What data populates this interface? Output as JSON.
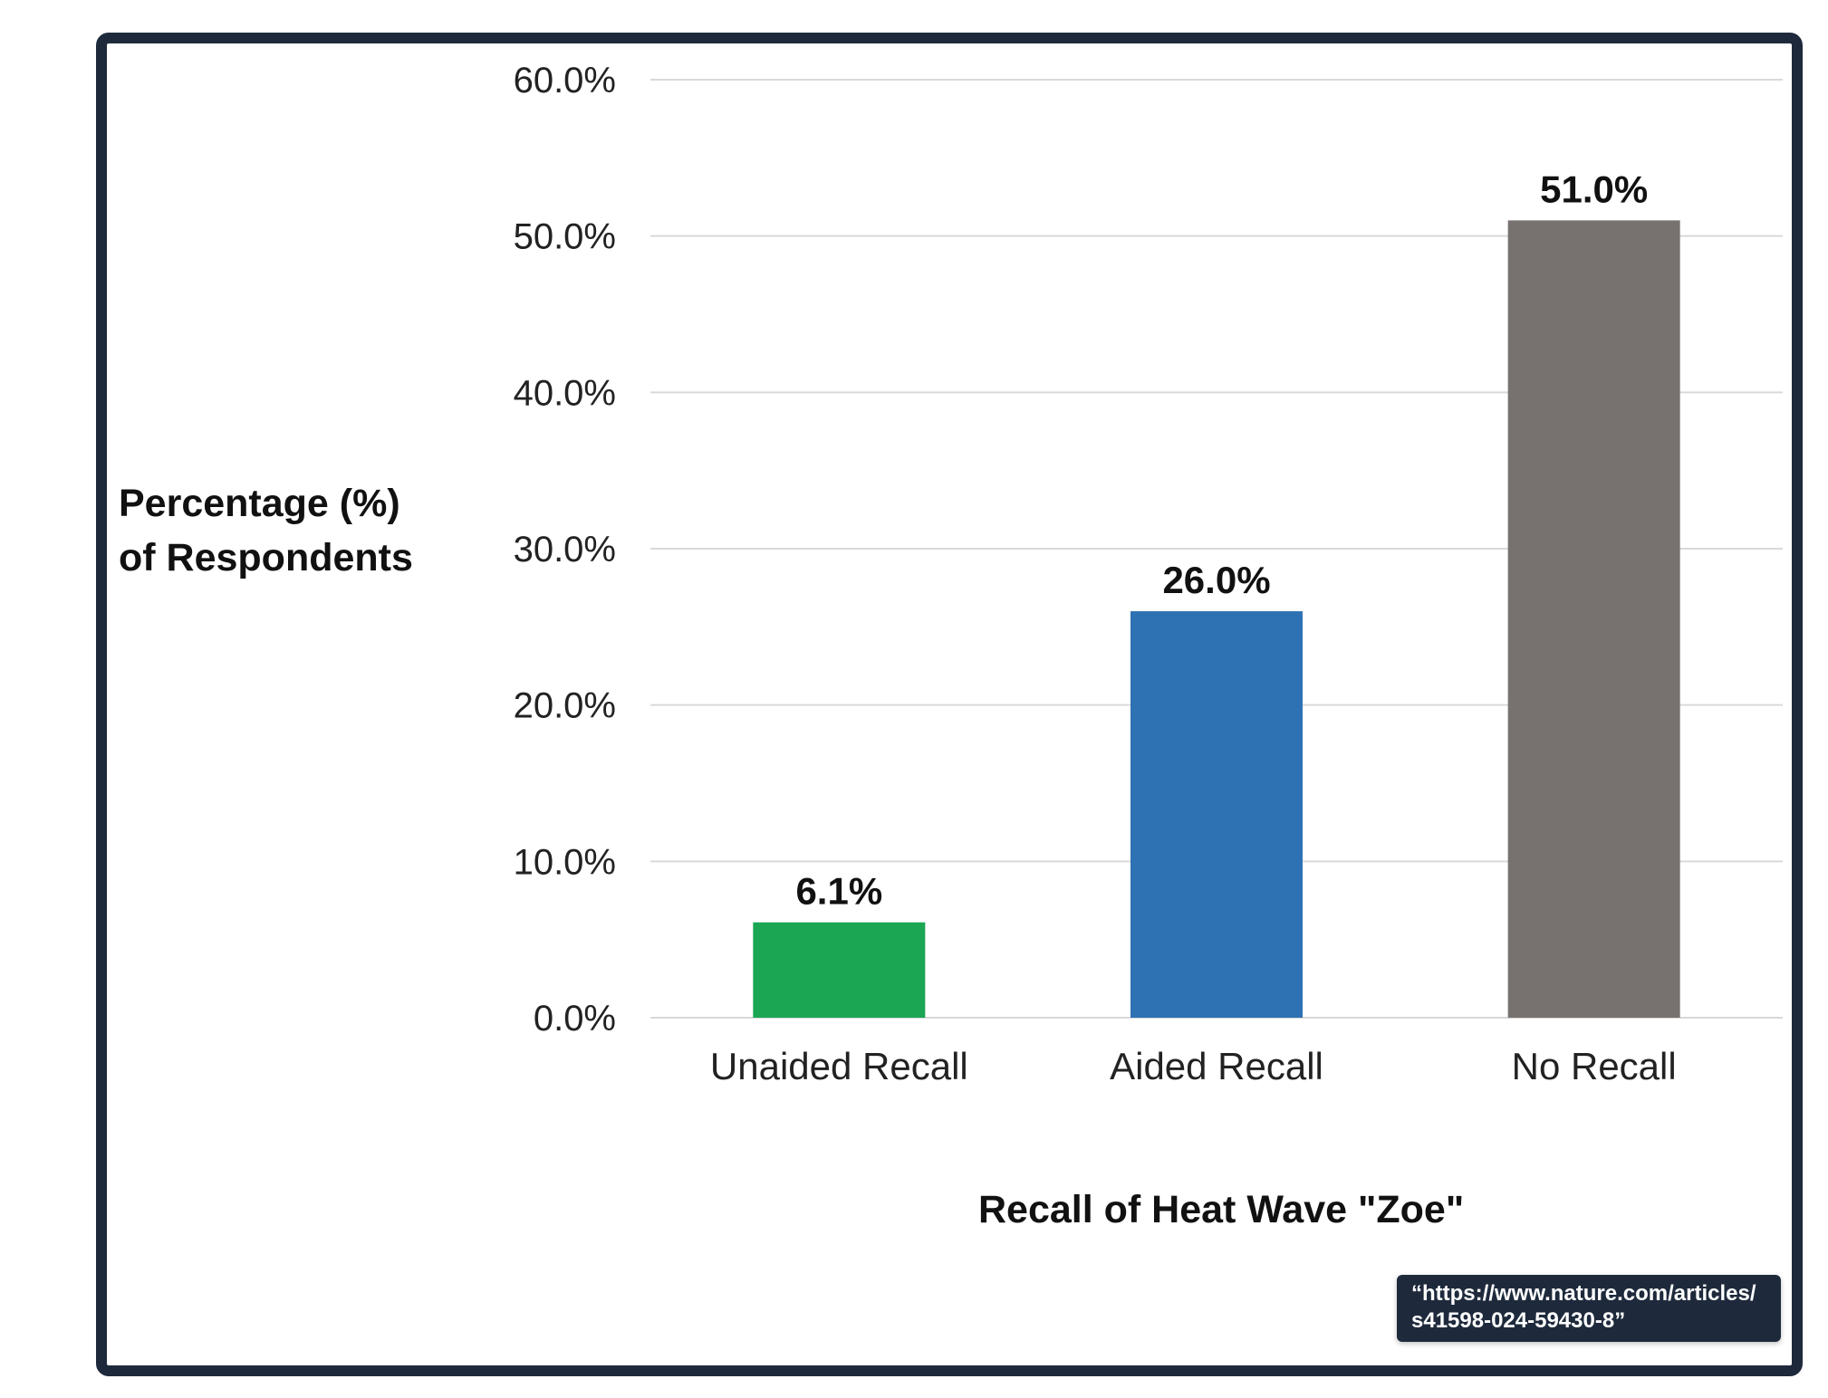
{
  "chart_data": {
    "type": "bar",
    "categories": [
      "Unaided Recall",
      "Aided Recall",
      "No Recall"
    ],
    "values": [
      6.1,
      26.0,
      51.0
    ],
    "value_labels": [
      "6.1%",
      "26.0%",
      "51.0%"
    ],
    "colors": [
      "#1aa653",
      "#2e72b3",
      "#77726f"
    ],
    "ylim": [
      0,
      60
    ],
    "yticks": [
      "0.0%",
      "10.0%",
      "20.0%",
      "30.0%",
      "40.0%",
      "50.0%",
      "60.0%"
    ],
    "ylabel": "Percentage (%)\nof Respondents",
    "xlabel": "Recall of Heat Wave \"Zoe\"",
    "grid": true
  },
  "source_note": {
    "line1": "“https://www.nature.com/articles/",
    "line2": "s41598-024-59430-8”"
  }
}
